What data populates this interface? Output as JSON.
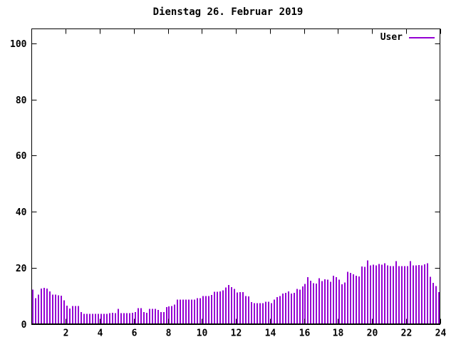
{
  "window": {
    "background_color": "#ffffff",
    "text_color": "#000000"
  },
  "legend": {
    "label": "User",
    "line_color": "#9400d3"
  },
  "chart_data": {
    "type": "bar",
    "title": "Dienstag 26. Februar 2019",
    "xlabel": "",
    "ylabel": "",
    "xlim": [
      0,
      24
    ],
    "ylim": [
      0,
      105.2
    ],
    "xticks": [
      2,
      4,
      6,
      8,
      10,
      12,
      14,
      16,
      18,
      20,
      22,
      24
    ],
    "yticks": [
      0,
      20,
      40,
      60,
      80,
      100
    ],
    "grid": false,
    "ticks_mirrored": true,
    "legend_position": "top-right-inside",
    "axis_color": "#000000",
    "x_unit": "hour-of-day",
    "x_start_hour": 0.0833,
    "x_step_hour": 0.16667,
    "series": [
      {
        "name": "User",
        "color": "#9400d3",
        "values": [
          12.2,
          9.2,
          10.4,
          12.6,
          12.8,
          12.6,
          11.5,
          10.4,
          10.4,
          10.2,
          10.0,
          8.4,
          6.5,
          5.5,
          6.3,
          6.3,
          6.3,
          4.2,
          3.6,
          3.5,
          3.5,
          3.5,
          3.5,
          3.5,
          3.5,
          3.6,
          3.6,
          3.8,
          4.0,
          3.8,
          5.3,
          3.8,
          3.8,
          3.8,
          3.8,
          4.0,
          4.2,
          5.6,
          5.6,
          4.2,
          4.0,
          5.3,
          5.3,
          5.3,
          5.0,
          4.2,
          4.2,
          6.0,
          6.2,
          6.4,
          6.8,
          8.6,
          8.6,
          8.6,
          8.6,
          8.6,
          8.6,
          8.7,
          9.1,
          9.1,
          9.9,
          9.9,
          9.9,
          10.3,
          11.4,
          11.4,
          11.6,
          12.0,
          12.9,
          13.8,
          13.1,
          12.5,
          11.2,
          11.3,
          11.3,
          9.9,
          9.8,
          7.8,
          7.4,
          7.4,
          7.4,
          7.4,
          7.9,
          7.9,
          7.4,
          8.7,
          9.5,
          9.9,
          10.8,
          11.0,
          11.6,
          10.8,
          11.0,
          12.5,
          12.2,
          13.4,
          14.2,
          16.7,
          15.4,
          14.5,
          14.3,
          16.3,
          15.2,
          15.9,
          15.7,
          15.0,
          17.1,
          16.7,
          15.7,
          14.1,
          14.8,
          18.6,
          18.2,
          17.6,
          17.1,
          16.9,
          20.5,
          20.3,
          22.6,
          20.9,
          21.1,
          20.9,
          21.3,
          21.1,
          21.6,
          20.9,
          20.6,
          20.6,
          22.4,
          20.6,
          20.6,
          20.6,
          20.6,
          22.4,
          20.8,
          20.8,
          21.0,
          20.8,
          21.2,
          21.6,
          16.8,
          14.6,
          13.5,
          11.3
        ]
      }
    ]
  }
}
